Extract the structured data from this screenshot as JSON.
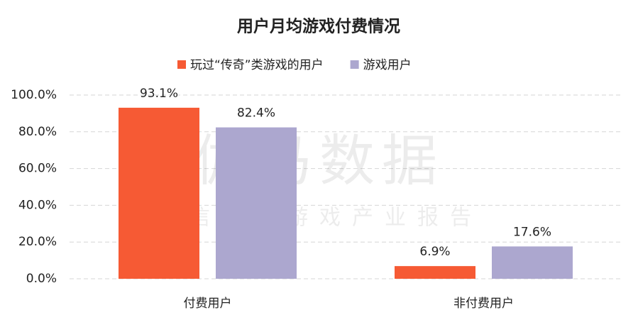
{
  "chart_data": {
    "type": "bar",
    "title": "用户月均游戏付费情况",
    "categories": [
      "付费用户",
      "非付费用户"
    ],
    "series": [
      {
        "name": "玩过“传奇”类游戏的用户",
        "color": "#f65a34",
        "values": [
          93.1,
          6.9
        ],
        "value_labels": [
          "93.1%",
          "6.9%"
        ]
      },
      {
        "name": "游戏用户",
        "color": "#aca7cf",
        "values": [
          82.4,
          17.6
        ],
        "value_labels": [
          "82.4%",
          "17.6%"
        ]
      }
    ],
    "ylim": [
      0,
      100
    ],
    "yticks": [
      {
        "value": 0,
        "label": "0.0%"
      },
      {
        "value": 20,
        "label": "20.0%"
      },
      {
        "value": 40,
        "label": "40.0%"
      },
      {
        "value": 60,
        "label": "60.0%"
      },
      {
        "value": 80,
        "label": "80.0%"
      },
      {
        "value": 100,
        "label": "100.0%"
      }
    ],
    "grid": true,
    "legend": "top",
    "watermark": {
      "title": "伽马数据",
      "subtitle": "微信号：游戏产业报告"
    }
  }
}
